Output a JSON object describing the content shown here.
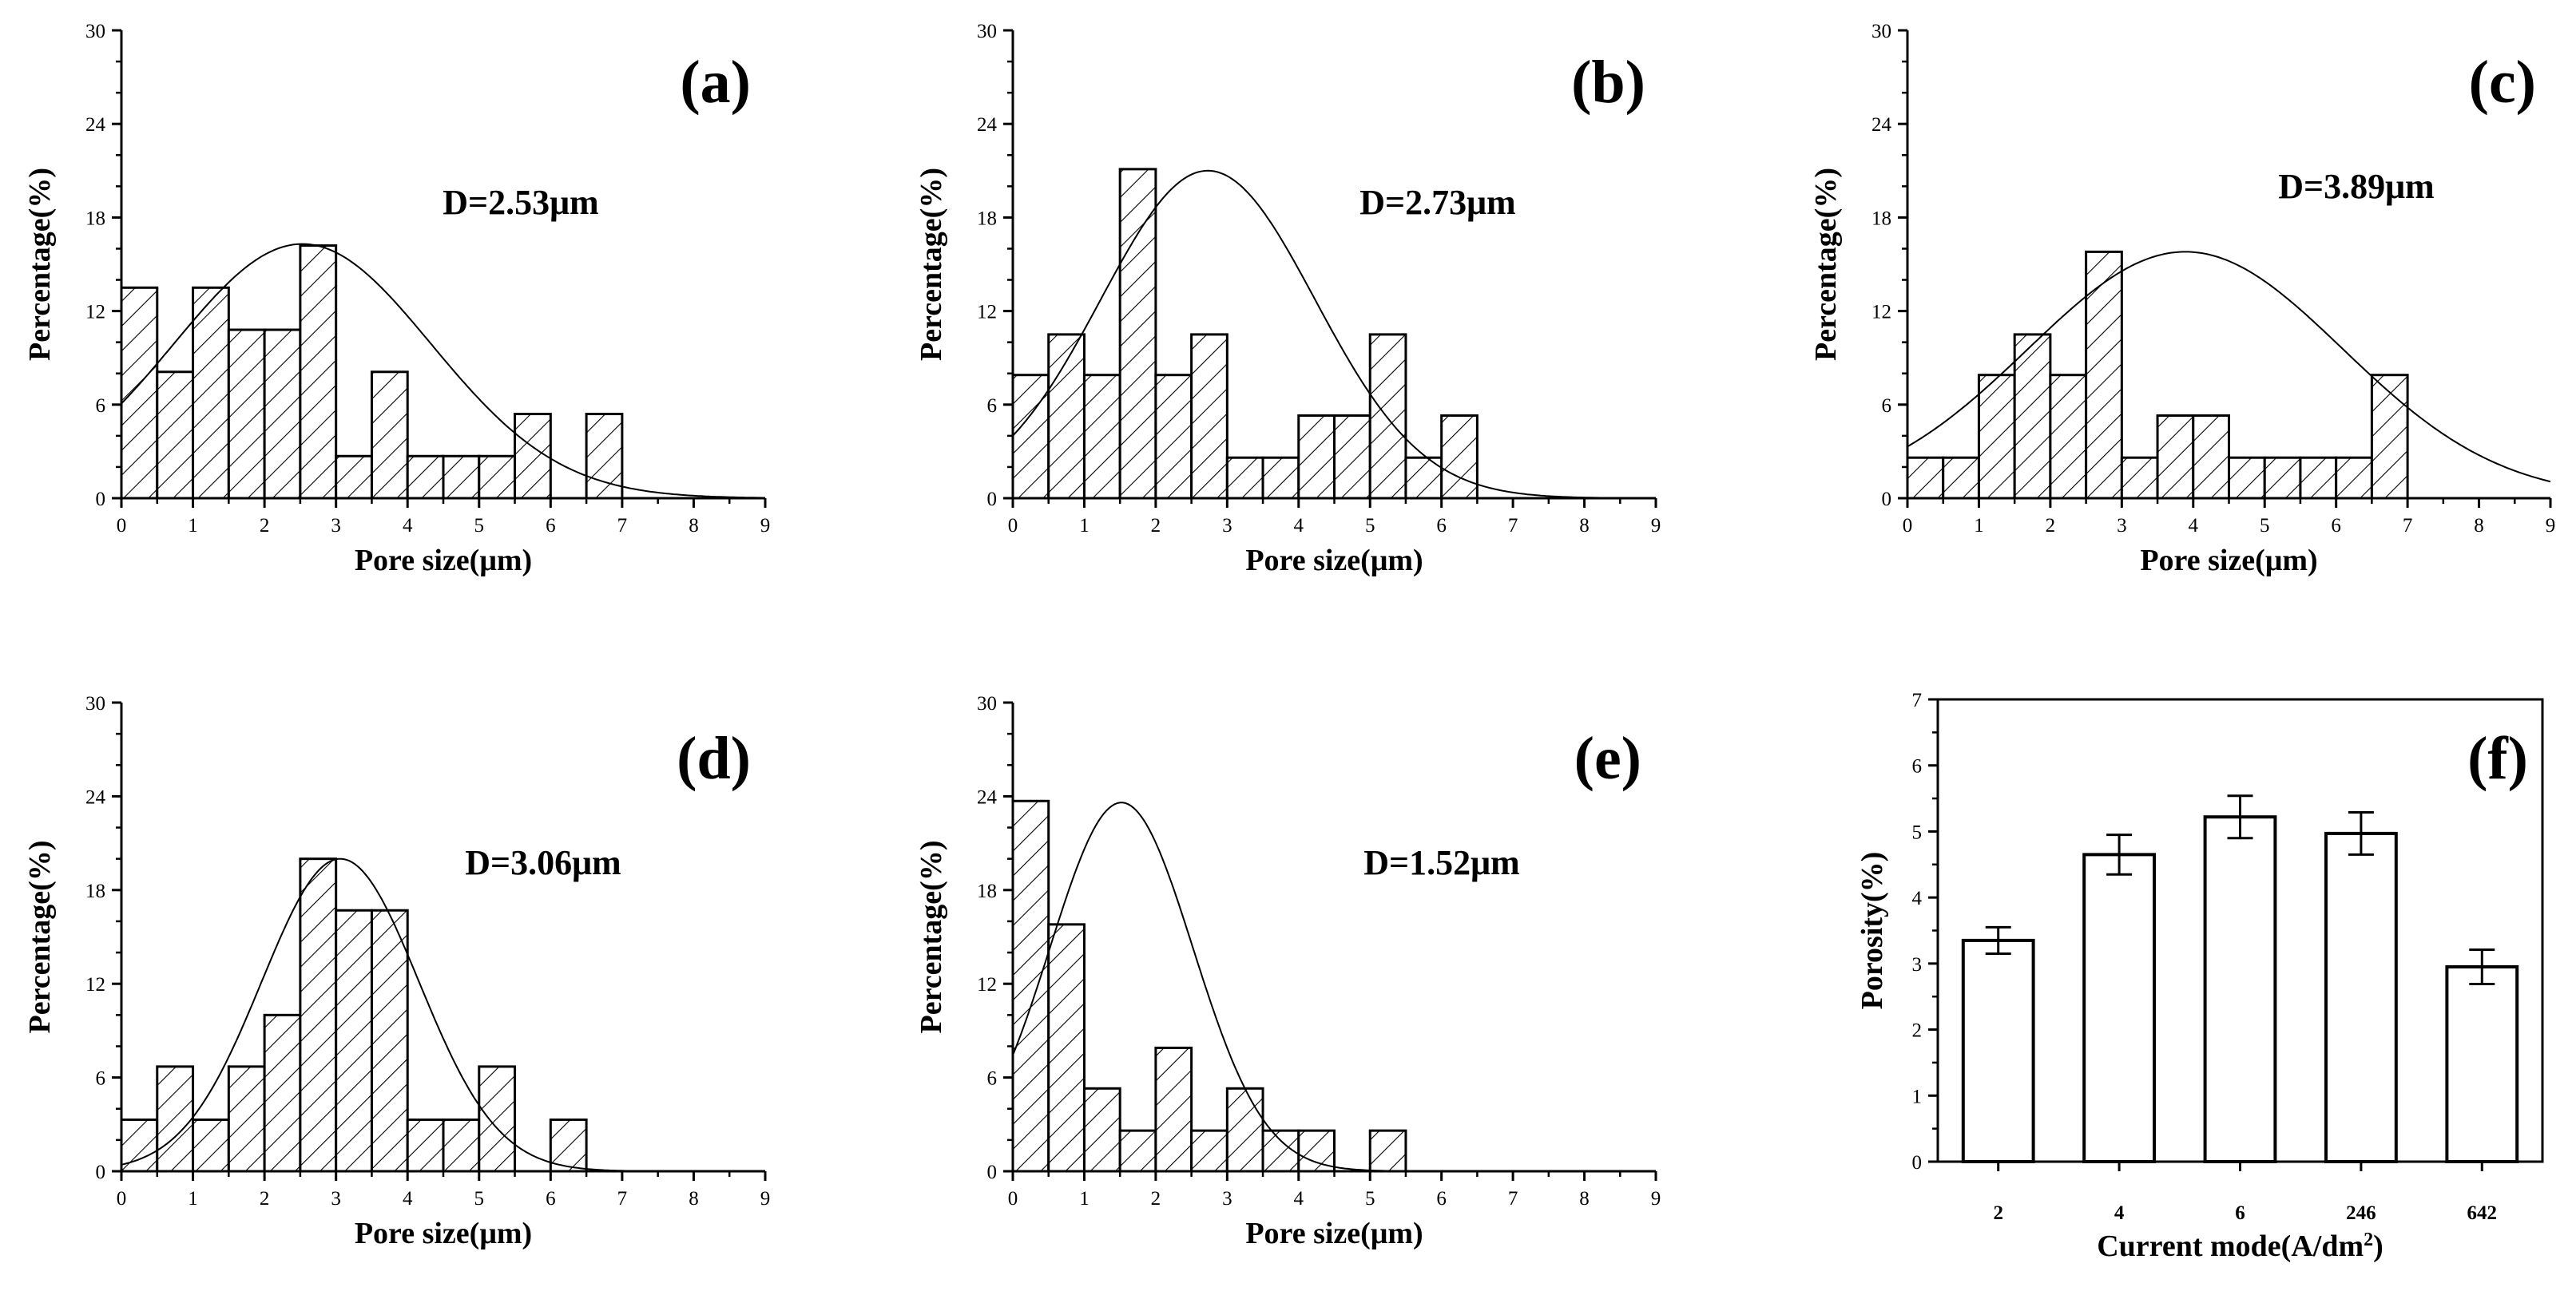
{
  "figure": {
    "background": "#ffffff",
    "ink": "#000000"
  },
  "chart_data": [
    {
      "type": "bar",
      "panel_label": "(a)",
      "annotation": "D=2.53μm",
      "xlabel": "Pore size(μm)",
      "ylabel": "Percentage(%)",
      "xlim": [
        0,
        9
      ],
      "ylim": [
        0,
        30
      ],
      "xticks": [
        0,
        1,
        2,
        3,
        4,
        5,
        6,
        7,
        8,
        9
      ],
      "yticks": [
        0,
        6,
        12,
        18,
        24,
        30
      ],
      "bin_width": 0.5,
      "bins": [
        {
          "x": 0.0,
          "value": 13.5
        },
        {
          "x": 0.5,
          "value": 8.1
        },
        {
          "x": 1.0,
          "value": 13.5
        },
        {
          "x": 1.5,
          "value": 10.8
        },
        {
          "x": 2.0,
          "value": 10.8
        },
        {
          "x": 2.5,
          "value": 16.2
        },
        {
          "x": 3.0,
          "value": 2.7
        },
        {
          "x": 3.5,
          "value": 8.1
        },
        {
          "x": 4.0,
          "value": 2.7
        },
        {
          "x": 4.5,
          "value": 2.7
        },
        {
          "x": 5.0,
          "value": 2.7
        },
        {
          "x": 5.5,
          "value": 5.4
        },
        {
          "x": 6.5,
          "value": 5.4
        }
      ],
      "fit_curve": {
        "mean": 2.53,
        "peak": 16.3,
        "sigma": 1.8
      }
    },
    {
      "type": "bar",
      "panel_label": "(b)",
      "annotation": "D=2.73μm",
      "xlabel": "Pore size(μm)",
      "ylabel": "Percentage(%)",
      "xlim": [
        0,
        9
      ],
      "ylim": [
        0,
        30
      ],
      "xticks": [
        0,
        1,
        2,
        3,
        4,
        5,
        6,
        7,
        8,
        9
      ],
      "yticks": [
        0,
        6,
        12,
        18,
        24,
        30
      ],
      "bin_width": 0.5,
      "bins": [
        {
          "x": 0.0,
          "value": 7.9
        },
        {
          "x": 0.5,
          "value": 10.5
        },
        {
          "x": 1.0,
          "value": 7.9
        },
        {
          "x": 1.5,
          "value": 21.1
        },
        {
          "x": 2.0,
          "value": 7.9
        },
        {
          "x": 2.5,
          "value": 10.5
        },
        {
          "x": 3.0,
          "value": 2.6
        },
        {
          "x": 3.5,
          "value": 2.6
        },
        {
          "x": 4.0,
          "value": 5.3
        },
        {
          "x": 4.5,
          "value": 5.3
        },
        {
          "x": 5.0,
          "value": 10.5
        },
        {
          "x": 5.5,
          "value": 2.6
        },
        {
          "x": 6.0,
          "value": 5.3
        }
      ],
      "fit_curve": {
        "mean": 2.73,
        "peak": 21.0,
        "sigma": 1.5
      }
    },
    {
      "type": "bar",
      "panel_label": "(c)",
      "annotation": "D=3.89μm",
      "xlabel": "Pore size(μm)",
      "ylabel": "Percentage(%)",
      "xlim": [
        0,
        9
      ],
      "ylim": [
        0,
        30
      ],
      "xticks": [
        0,
        1,
        2,
        3,
        4,
        5,
        6,
        7,
        8,
        9
      ],
      "yticks": [
        0,
        6,
        12,
        18,
        24,
        30
      ],
      "bin_width": 0.5,
      "bins": [
        {
          "x": 0.0,
          "value": 2.6
        },
        {
          "x": 0.5,
          "value": 2.6
        },
        {
          "x": 1.0,
          "value": 7.9
        },
        {
          "x": 1.5,
          "value": 10.5
        },
        {
          "x": 2.0,
          "value": 7.9
        },
        {
          "x": 2.5,
          "value": 15.8
        },
        {
          "x": 3.0,
          "value": 2.6
        },
        {
          "x": 3.5,
          "value": 5.3
        },
        {
          "x": 4.0,
          "value": 5.3
        },
        {
          "x": 4.5,
          "value": 2.6
        },
        {
          "x": 5.0,
          "value": 2.6
        },
        {
          "x": 5.5,
          "value": 2.6
        },
        {
          "x": 6.0,
          "value": 2.6
        },
        {
          "x": 6.5,
          "value": 7.9
        }
      ],
      "fit_curve": {
        "mean": 3.89,
        "peak": 15.8,
        "sigma": 2.2
      }
    },
    {
      "type": "bar",
      "panel_label": "(d)",
      "annotation": "D=3.06μm",
      "xlabel": "Pore size(μm)",
      "ylabel": "Percentage(%)",
      "xlim": [
        0,
        9
      ],
      "ylim": [
        0,
        30
      ],
      "xticks": [
        0,
        1,
        2,
        3,
        4,
        5,
        6,
        7,
        8,
        9
      ],
      "yticks": [
        0,
        6,
        12,
        18,
        24,
        30
      ],
      "bin_width": 0.5,
      "bins": [
        {
          "x": 0.0,
          "value": 3.3
        },
        {
          "x": 0.5,
          "value": 6.7
        },
        {
          "x": 1.0,
          "value": 3.3
        },
        {
          "x": 1.5,
          "value": 6.7
        },
        {
          "x": 2.0,
          "value": 10.0
        },
        {
          "x": 2.5,
          "value": 20.0
        },
        {
          "x": 3.0,
          "value": 16.7
        },
        {
          "x": 3.5,
          "value": 16.7
        },
        {
          "x": 4.0,
          "value": 3.3
        },
        {
          "x": 4.5,
          "value": 3.3
        },
        {
          "x": 5.0,
          "value": 6.7
        },
        {
          "x": 6.0,
          "value": 3.3
        }
      ],
      "fit_curve": {
        "mean": 3.06,
        "peak": 20.0,
        "sigma": 1.1
      }
    },
    {
      "type": "bar",
      "panel_label": "(e)",
      "annotation": "D=1.52μm",
      "xlabel": "Pore size(μm)",
      "ylabel": "Percentage(%)",
      "xlim": [
        0,
        9
      ],
      "ylim": [
        0,
        30
      ],
      "xticks": [
        0,
        1,
        2,
        3,
        4,
        5,
        6,
        7,
        8,
        9
      ],
      "yticks": [
        0,
        6,
        12,
        18,
        24,
        30
      ],
      "bin_width": 0.5,
      "bins": [
        {
          "x": 0.0,
          "value": 23.7
        },
        {
          "x": 0.5,
          "value": 15.8
        },
        {
          "x": 1.0,
          "value": 5.3
        },
        {
          "x": 1.5,
          "value": 2.6
        },
        {
          "x": 2.0,
          "value": 7.9
        },
        {
          "x": 2.5,
          "value": 2.6
        },
        {
          "x": 3.0,
          "value": 5.3
        },
        {
          "x": 3.5,
          "value": 2.6
        },
        {
          "x": 4.0,
          "value": 2.6
        },
        {
          "x": 5.0,
          "value": 2.6
        }
      ],
      "fit_curve": {
        "mean": 1.52,
        "peak": 23.6,
        "sigma": 1.0
      }
    },
    {
      "type": "bar",
      "panel_label": "(f)",
      "xlabel": "Current mode(A/dm",
      "xlabel_superscript": "2",
      "xlabel_suffix": ")",
      "ylabel": "Porosity(%)",
      "ylim": [
        0,
        7
      ],
      "yticks": [
        0,
        1,
        2,
        3,
        4,
        5,
        6,
        7
      ],
      "categories": [
        "2",
        "4",
        "6",
        "246",
        "642"
      ],
      "values": [
        3.35,
        4.65,
        5.22,
        4.97,
        2.95
      ],
      "errors": [
        0.2,
        0.3,
        0.32,
        0.32,
        0.26
      ]
    }
  ]
}
